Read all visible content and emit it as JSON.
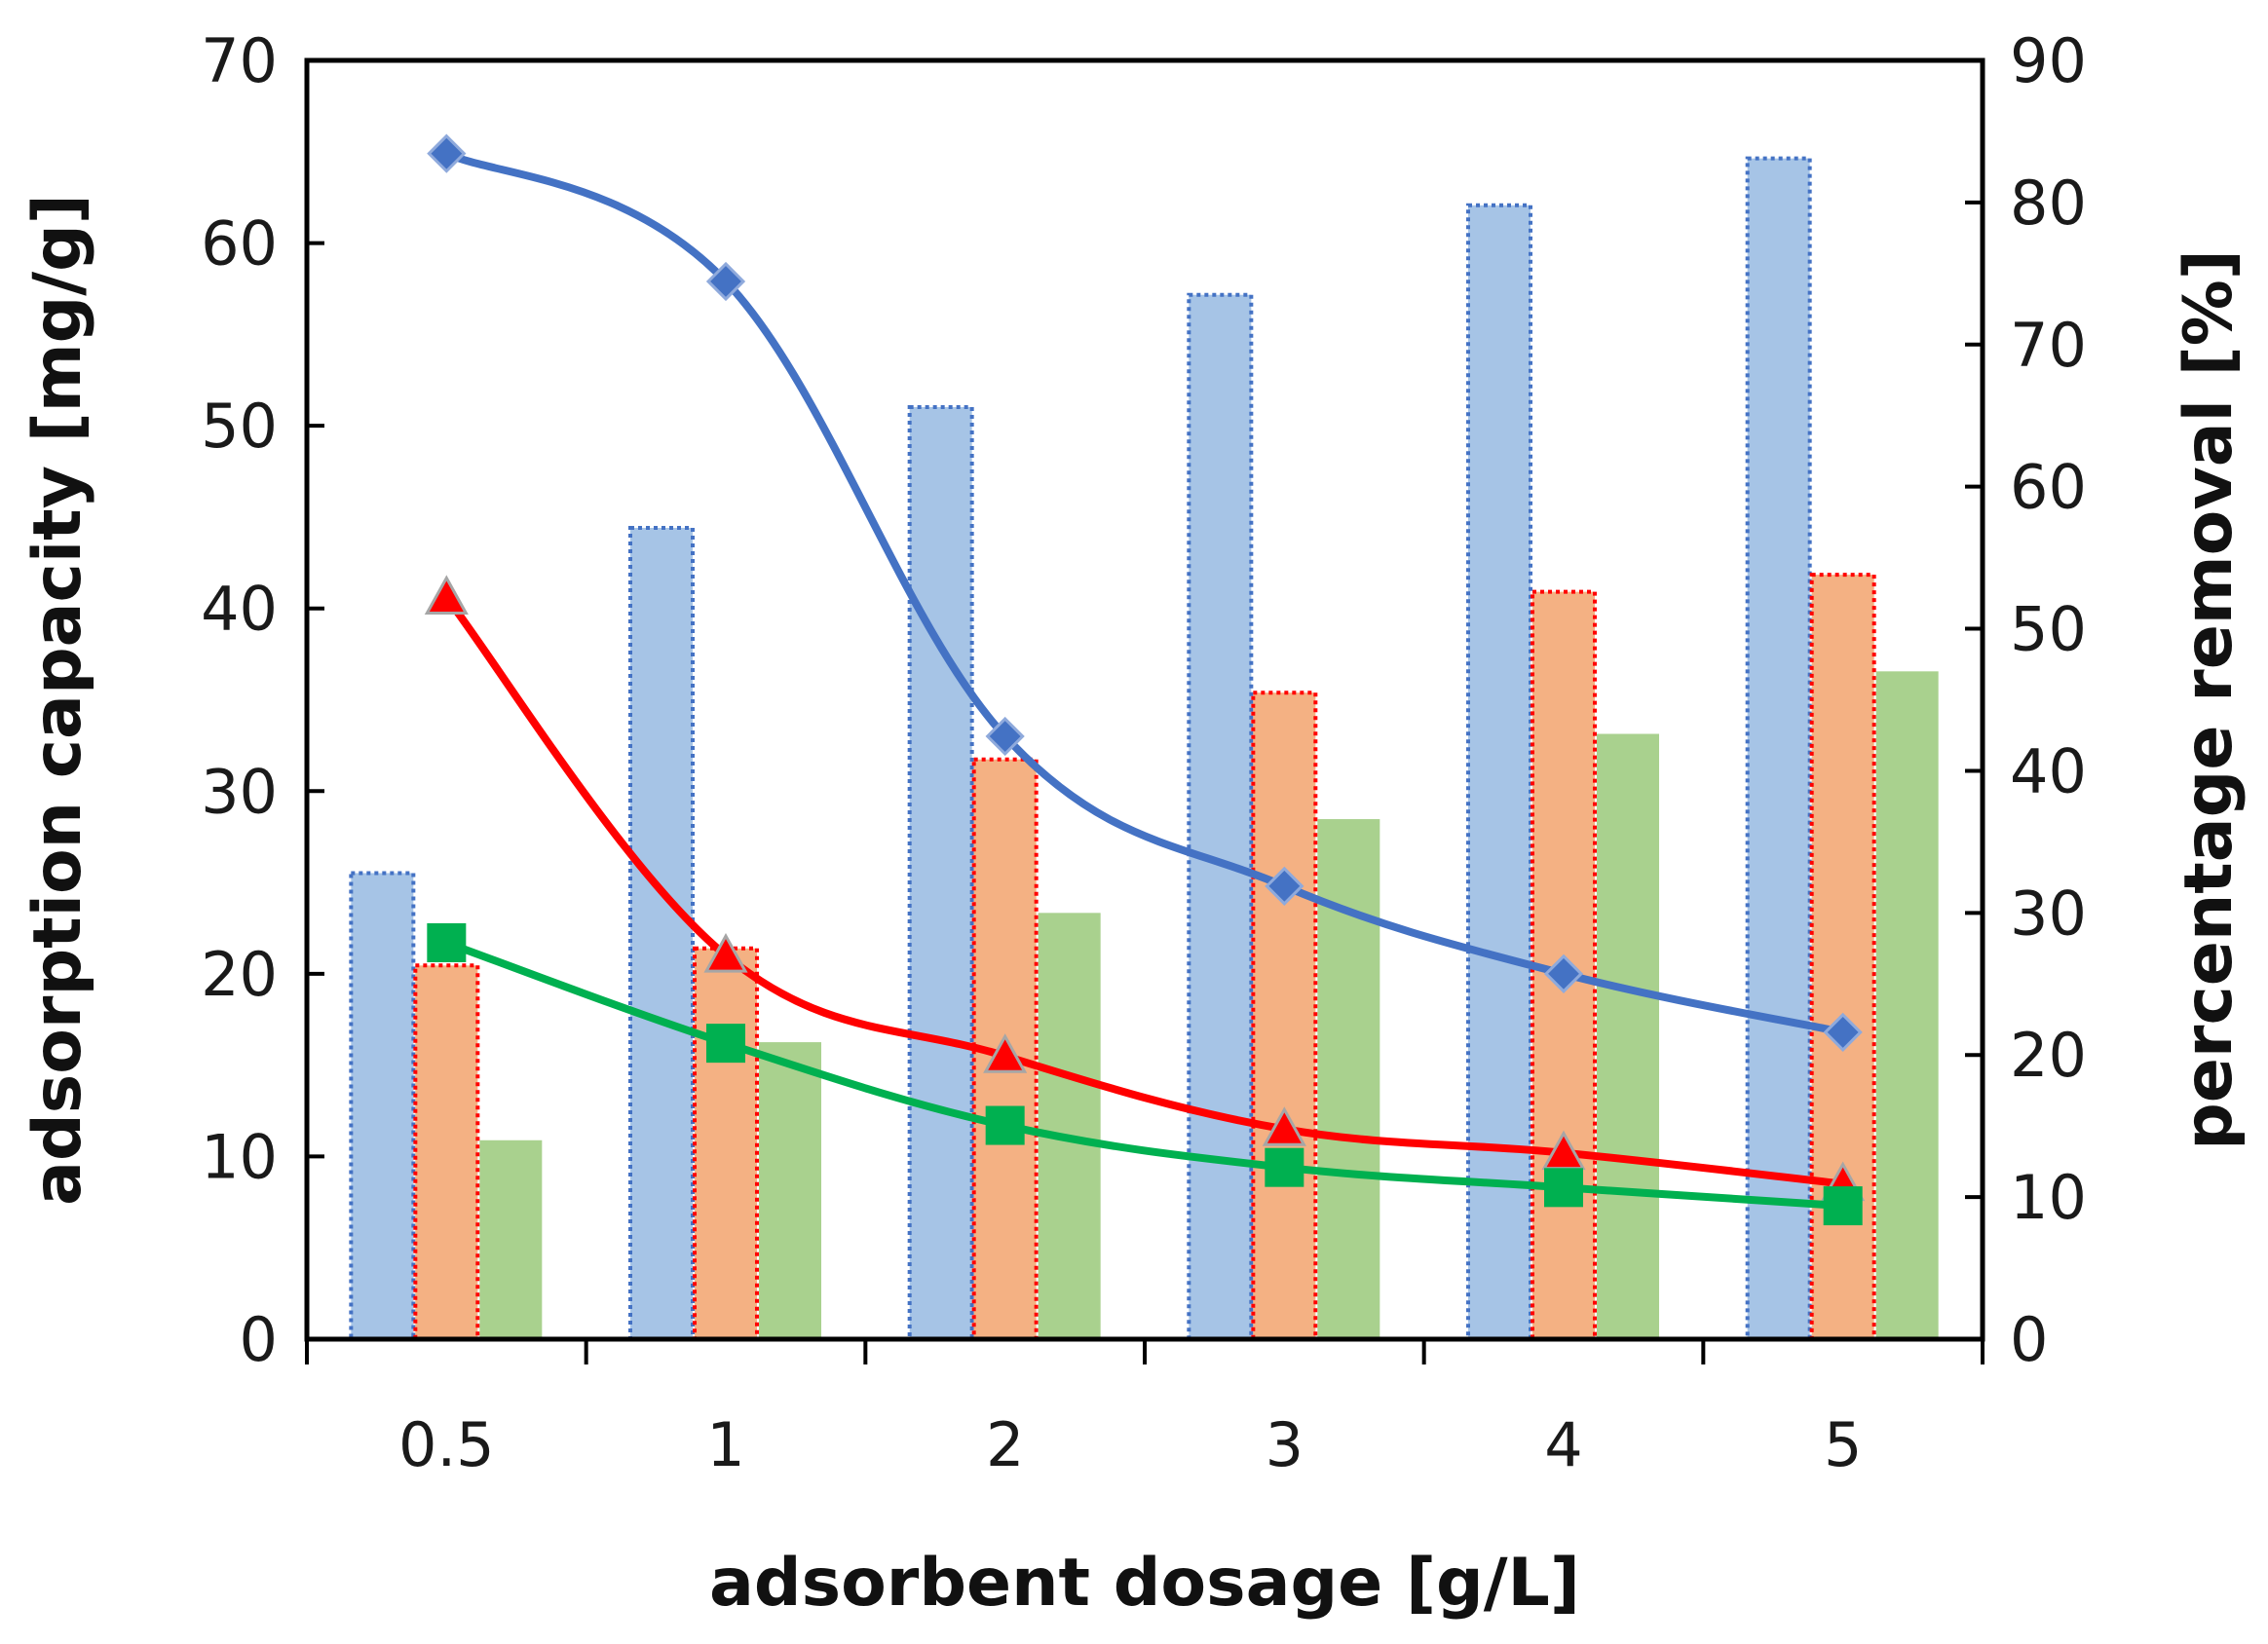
{
  "chart_data": {
    "type": "bar",
    "title": "",
    "xlabel": "adsorbent dosage [g/L]",
    "ylabel": "adsorption capacity [mg/g]",
    "y2label": "percentage removal [%]",
    "categories": [
      "0.5",
      "1",
      "2",
      "3",
      "4",
      "5"
    ],
    "ylim": [
      0,
      70
    ],
    "y2lim": [
      0,
      90
    ],
    "yticks": [
      "0",
      "10",
      "20",
      "30",
      "40",
      "50",
      "60",
      "70"
    ],
    "y2ticks": [
      "0",
      "10",
      "20",
      "30",
      "40",
      "50",
      "60",
      "70",
      "80",
      "90"
    ],
    "grid": false,
    "legend": "none",
    "bar_series": [
      {
        "values": [
          32.8,
          57.1,
          65.6,
          73.5,
          79.8,
          83.1
        ],
        "fill": "#a6c4e6",
        "border": "#4472c4",
        "axis": "right"
      },
      {
        "values": [
          26.3,
          27.5,
          40.8,
          45.5,
          52.6,
          53.8
        ],
        "fill": "#f4b183",
        "border": "#ff0000",
        "axis": "right"
      },
      {
        "values": [
          14.0,
          20.9,
          30.0,
          36.6,
          42.6,
          47.0
        ],
        "fill": "#a9d18e",
        "border": "",
        "axis": "right"
      }
    ],
    "line_series": [
      {
        "values": [
          64.9,
          57.9,
          33.0,
          24.8,
          20.0,
          16.8
        ],
        "color": "#4472c4",
        "marker": "diamond",
        "axis": "left"
      },
      {
        "values": [
          40.6,
          21.0,
          15.5,
          11.5,
          10.2,
          8.5
        ],
        "color": "#ff0000",
        "marker": "triangle",
        "axis": "left"
      },
      {
        "values": [
          21.7,
          16.2,
          11.7,
          9.4,
          8.3,
          7.3
        ],
        "color": "#00b050",
        "marker": "square",
        "axis": "left"
      }
    ]
  }
}
